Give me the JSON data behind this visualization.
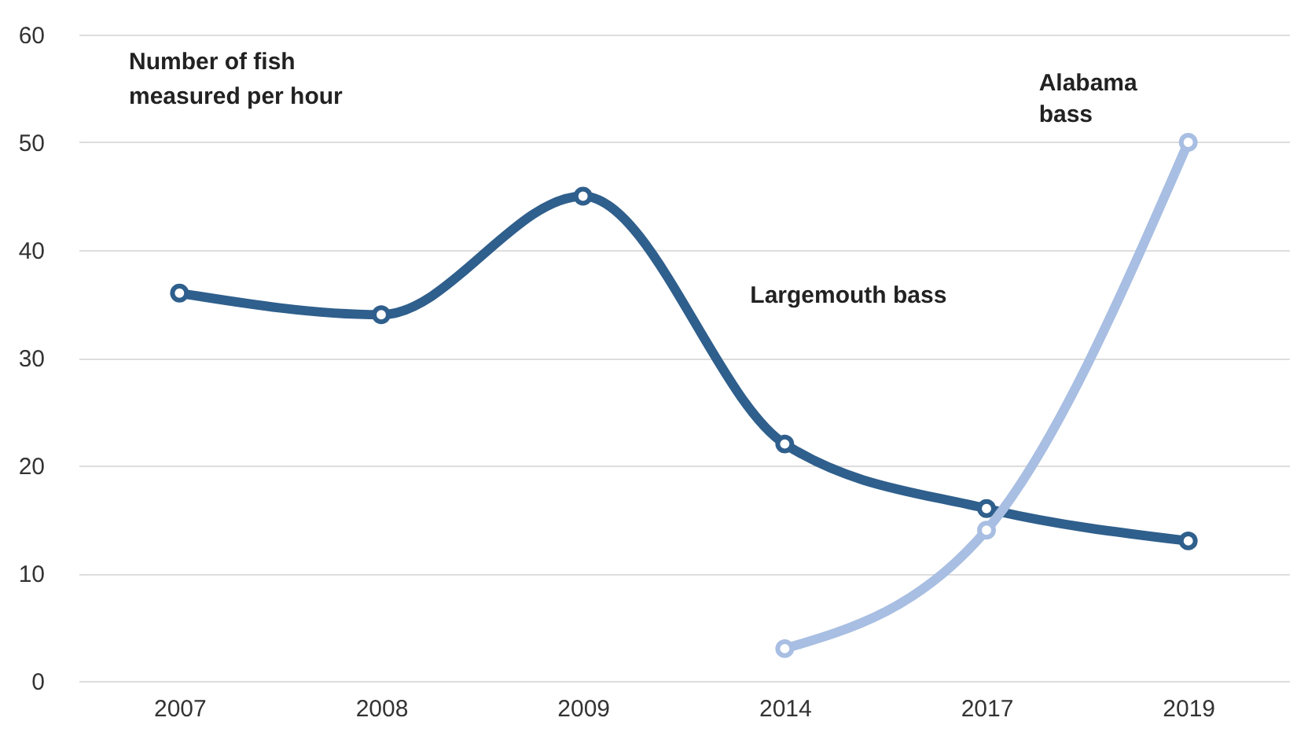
{
  "chart_data": {
    "type": "line",
    "ylabel": "Number of fish measured per hour",
    "categories": [
      "2007",
      "2008",
      "2009",
      "2014",
      "2017",
      "2019"
    ],
    "series": [
      {
        "name": "Largemouth bass",
        "color": "#2f5f8c",
        "values": [
          36,
          34,
          45,
          22,
          16,
          13
        ]
      },
      {
        "name": "Alabama bass",
        "color": "#a8bee2",
        "values": [
          null,
          null,
          null,
          3,
          14,
          50
        ]
      }
    ],
    "ylim": [
      0,
      60
    ],
    "yticks": [
      0,
      10,
      20,
      30,
      40,
      50,
      60
    ],
    "grid": "y",
    "marker": "circle",
    "line_style": "solid"
  }
}
